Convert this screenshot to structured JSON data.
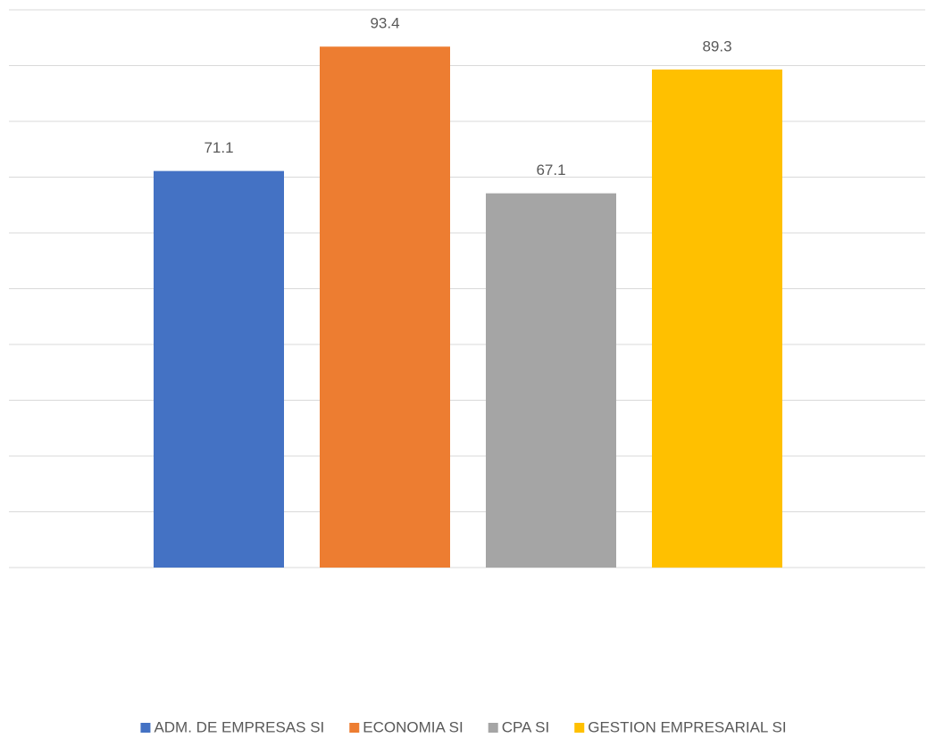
{
  "chart_data": {
    "type": "bar",
    "categories": [
      null
    ],
    "series": [
      {
        "name": "ADM. DE EMPRESAS SI",
        "color": "#4472c4",
        "values": [
          71.1
        ]
      },
      {
        "name": "ECONOMIA SI",
        "color": "#ed7d31",
        "values": [
          93.4
        ]
      },
      {
        "name": "CPA SI",
        "color": "#a5a5a5",
        "values": [
          67.1
        ]
      },
      {
        "name": "GESTION EMPRESARIAL SI",
        "color": "#ffc000",
        "values": [
          89.3
        ]
      }
    ],
    "ylim": [
      0,
      100
    ],
    "yticks": [
      0,
      10,
      20,
      30,
      40,
      50,
      60,
      70,
      80,
      90,
      100
    ],
    "grid": true,
    "legend": "bottom"
  }
}
